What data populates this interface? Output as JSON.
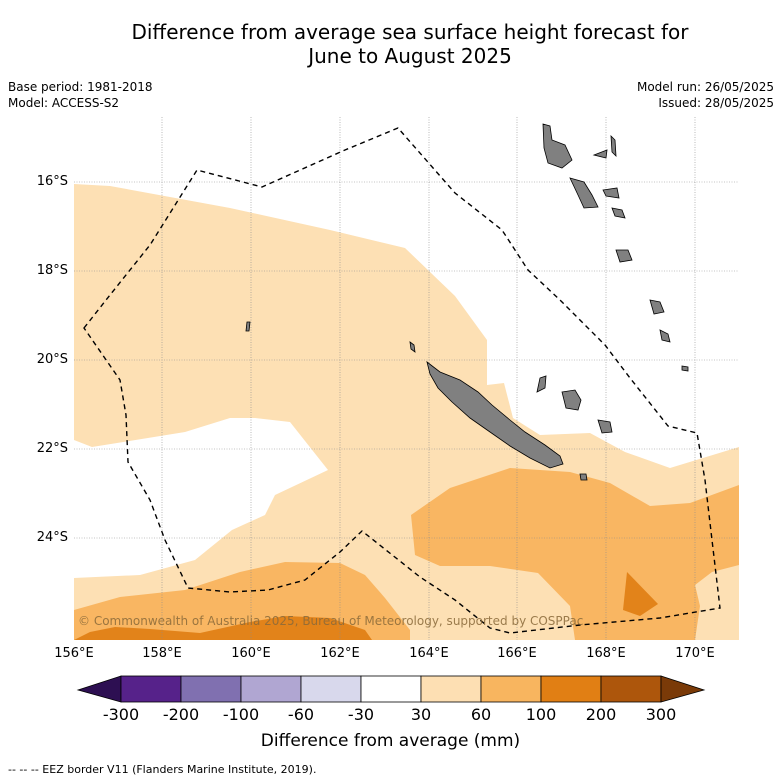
{
  "title_line1": "Difference from average sea surface height forecast for",
  "title_line2": "June to August 2025",
  "meta": {
    "base_period": "Base period: 1981-2018",
    "model": "Model: ACCESS-S2",
    "model_run": "Model run: 26/05/2025",
    "issued": "Issued: 28/05/2025"
  },
  "copyright": "© Commonwealth of Australia 2025, Bureau of Meteorology, supported by COSPPac",
  "x_ticks": [
    "156°E",
    "158°E",
    "160°E",
    "162°E",
    "164°E",
    "166°E",
    "168°E",
    "170°E"
  ],
  "y_ticks": [
    "16°S",
    "18°S",
    "20°S",
    "22°S",
    "24°S"
  ],
  "colorbar": {
    "ticks": [
      "-300",
      "-200",
      "-100",
      "-60",
      "-30",
      "30",
      "60",
      "100",
      "200",
      "300"
    ],
    "colors": [
      "#2d0f52",
      "#56228a",
      "#8070b0",
      "#b0a6d2",
      "#d8d8ec",
      "#ffffff",
      "#fddfb3",
      "#f8b55f",
      "#e17f14",
      "#ad560c",
      "#7a3a08"
    ],
    "label": "Difference from average (mm)"
  },
  "colors": {
    "pale_orange": "#fde0b4",
    "light_orange": "#f9b662",
    "orange": "#e2831a",
    "land": "#808080",
    "grid": "#a0a0a0"
  },
  "footer": "--  --  -- EEZ border V11 (Flanders Marine Institute, 2019)."
}
